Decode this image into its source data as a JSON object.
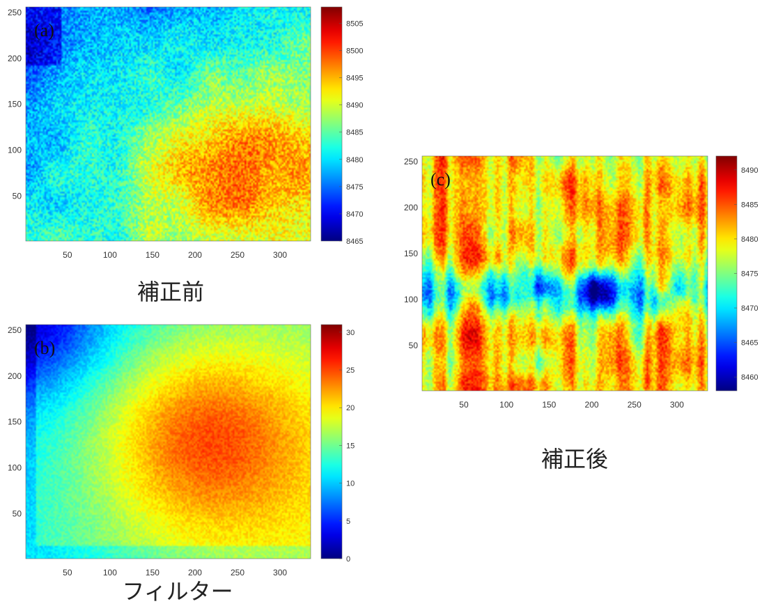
{
  "chart_data": [
    {
      "type": "heatmap",
      "panel_label": "(a)",
      "caption": "補正前",
      "x_ticks": [
        50,
        100,
        150,
        200,
        250,
        300
      ],
      "y_ticks": [
        50,
        100,
        150,
        200,
        250
      ],
      "xlim": [
        1,
        336
      ],
      "ylim": [
        1,
        256
      ],
      "colorbar": {
        "min": 8465,
        "max": 8508,
        "ticks": [
          8465,
          8470,
          8475,
          8480,
          8485,
          8490,
          8495,
          8500,
          8505
        ]
      },
      "colormap": "jet",
      "pattern": "low values (blue) at top-left, high values (orange/red) at lower-right"
    },
    {
      "type": "heatmap",
      "panel_label": "(b)",
      "caption": "フィルター",
      "x_ticks": [
        50,
        100,
        150,
        200,
        250,
        300
      ],
      "y_ticks": [
        50,
        100,
        150,
        200,
        250
      ],
      "xlim": [
        1,
        336
      ],
      "ylim": [
        1,
        256
      ],
      "colorbar": {
        "min": 0,
        "max": 31,
        "ticks": [
          0,
          5,
          10,
          15,
          20,
          25,
          30
        ]
      },
      "colormap": "jet",
      "pattern": "smooth field: blue at top-left corner, red plateau centered right of middle"
    },
    {
      "type": "heatmap",
      "panel_label": "(c)",
      "caption": "補正後",
      "x_ticks": [
        50,
        100,
        150,
        200,
        250,
        300
      ],
      "y_ticks": [
        50,
        100,
        150,
        200,
        250
      ],
      "xlim": [
        1,
        336
      ],
      "ylim": [
        1,
        256
      ],
      "colorbar": {
        "min": 8458,
        "max": 8492,
        "ticks": [
          8460,
          8465,
          8470,
          8475,
          8480,
          8485,
          8490
        ]
      },
      "colormap": "jet",
      "pattern": "mostly uniform yellow/orange with vertical streaks and a cyan band near y=110"
    }
  ]
}
